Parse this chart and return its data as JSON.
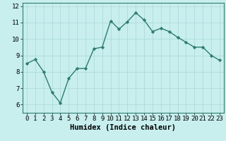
{
  "x": [
    0,
    1,
    2,
    3,
    4,
    5,
    6,
    7,
    8,
    9,
    10,
    11,
    12,
    13,
    14,
    15,
    16,
    17,
    18,
    19,
    20,
    21,
    22,
    23
  ],
  "y": [
    8.5,
    8.75,
    8.0,
    6.75,
    6.1,
    7.6,
    8.2,
    8.2,
    9.4,
    9.5,
    11.1,
    10.6,
    11.05,
    11.6,
    11.15,
    10.45,
    10.65,
    10.45,
    10.1,
    9.8,
    9.5,
    9.5,
    9.0,
    8.7
  ],
  "line_color": "#2e7d6e",
  "marker": "D",
  "markersize": 2.2,
  "linewidth": 1.0,
  "bg_color": "#c8eeee",
  "xlabel": "Humidex (Indice chaleur)",
  "xlim": [
    -0.5,
    23.5
  ],
  "ylim": [
    5.5,
    12.2
  ],
  "yticks": [
    6,
    7,
    8,
    9,
    10,
    11,
    12
  ],
  "xticks": [
    0,
    1,
    2,
    3,
    4,
    5,
    6,
    7,
    8,
    9,
    10,
    11,
    12,
    13,
    14,
    15,
    16,
    17,
    18,
    19,
    20,
    21,
    22,
    23
  ],
  "xlabel_fontsize": 7.5,
  "tick_fontsize": 6.5,
  "grid_color": "#aad8d8",
  "grid_linewidth": 0.5
}
